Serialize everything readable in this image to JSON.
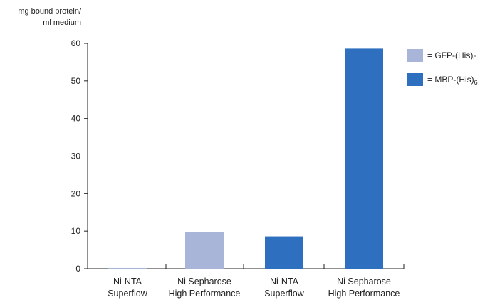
{
  "chart_data": {
    "type": "bar",
    "ylabel_line1": "mg bound protein/",
    "ylabel_line2": "ml medium",
    "ylim": [
      0,
      60
    ],
    "yticks": [
      "0",
      "10",
      "20",
      "30",
      "40",
      "50",
      "60"
    ],
    "categories": [
      {
        "line1": "Ni-NTA",
        "line2": "Superflow"
      },
      {
        "line1": "Ni Sepharose",
        "line2": "High Performance"
      },
      {
        "line1": "Ni-NTA",
        "line2": "Superflow"
      },
      {
        "line1": "Ni Sepharose",
        "line2": "High Performance"
      }
    ],
    "bars": [
      {
        "category_index": 0,
        "series": "GFP-(His)6",
        "value": 0.2
      },
      {
        "category_index": 1,
        "series": "GFP-(His)6",
        "value": 9.7
      },
      {
        "category_index": 2,
        "series": "MBP-(His)6",
        "value": 8.6
      },
      {
        "category_index": 3,
        "series": "MBP-(His)6",
        "value": 58.6
      }
    ],
    "legend": [
      {
        "prefix": "= GFP-(His)",
        "sub": "6",
        "color": "#a8b5d9"
      },
      {
        "prefix": "= MBP-(His)",
        "sub": "6",
        "color": "#2e6fc0"
      }
    ],
    "legend_placement": "top-right",
    "grid": false
  }
}
